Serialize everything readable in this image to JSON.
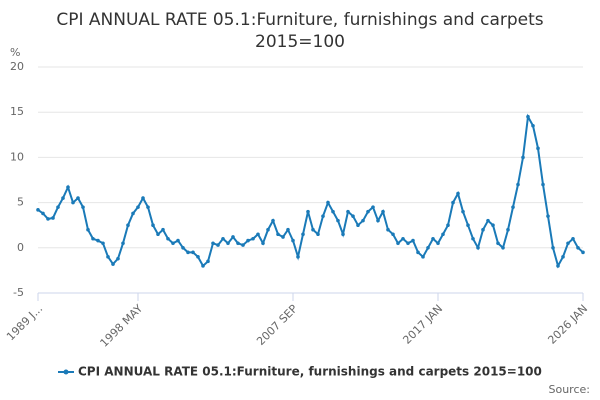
{
  "chart_data": {
    "type": "line",
    "title": "CPI ANNUAL RATE 05.1:Furniture, furnishings and carpets",
    "subtitle": "2015=100",
    "y_label": "%",
    "source": "Source:",
    "categories": [
      "1989 J...",
      null,
      null,
      null,
      null,
      null,
      null,
      null,
      null,
      null,
      null,
      null,
      null,
      null,
      null,
      null,
      null,
      null,
      null,
      null,
      "1998 MAY",
      null,
      null,
      null,
      null,
      null,
      null,
      null,
      null,
      null,
      null,
      null,
      null,
      null,
      null,
      null,
      null,
      null,
      null,
      null,
      null,
      null,
      null,
      null,
      null,
      null,
      null,
      null,
      null,
      null,
      null,
      "2007 SEP",
      null,
      null,
      null,
      null,
      null,
      null,
      null,
      null,
      null,
      null,
      null,
      null,
      null,
      null,
      null,
      null,
      null,
      null,
      null,
      null,
      null,
      null,
      null,
      null,
      null,
      null,
      null,
      null,
      "2017 JAN",
      null,
      null,
      null,
      null,
      null,
      null,
      null,
      null,
      null,
      null,
      null,
      null,
      null,
      null,
      null,
      null,
      null,
      null,
      null,
      null,
      null,
      null,
      null,
      null,
      null,
      null,
      null,
      null,
      "2026 JAN"
    ],
    "series": [
      {
        "name": "CPI ANNUAL RATE 05.1:Furniture, furnishings and carpets 2015=100",
        "color": "#1a7ab8",
        "values": [
          4.2,
          3.8,
          3.2,
          3.3,
          4.5,
          5.5,
          6.7,
          5.0,
          5.5,
          4.5,
          2.0,
          1.0,
          0.8,
          0.5,
          -1.0,
          -1.8,
          -1.2,
          0.5,
          2.5,
          3.8,
          4.5,
          5.5,
          4.5,
          2.5,
          1.5,
          2.0,
          1.0,
          0.5,
          0.8,
          0.0,
          -0.5,
          -0.5,
          -1.0,
          -2.0,
          -1.5,
          0.5,
          0.3,
          1.0,
          0.5,
          1.2,
          0.5,
          0.3,
          0.8,
          1.0,
          1.5,
          0.5,
          2.0,
          3.0,
          1.5,
          1.2,
          2.0,
          0.8,
          -1.0,
          1.5,
          4.0,
          2.0,
          1.5,
          3.5,
          5.0,
          4.0,
          3.0,
          1.5,
          4.0,
          3.5,
          2.5,
          3.0,
          4.0,
          4.5,
          3.0,
          4.0,
          2.0,
          1.5,
          0.5,
          1.0,
          0.5,
          0.8,
          -0.5,
          -1.0,
          0.0,
          1.0,
          0.5,
          1.5,
          2.5,
          5.0,
          6.0,
          4.0,
          2.5,
          1.0,
          0.0,
          2.0,
          3.0,
          2.5,
          0.5,
          0.0,
          2.0,
          4.5,
          7.0,
          10.0,
          14.5,
          13.5,
          11.0,
          7.0,
          3.5,
          0.0,
          -2.0,
          -1.0,
          0.5,
          1.0,
          0.0,
          -0.5
        ]
      }
    ],
    "ylim": [
      -5,
      20
    ],
    "yticks": [
      -5,
      0,
      5,
      10,
      15,
      20
    ],
    "grid": true
  }
}
